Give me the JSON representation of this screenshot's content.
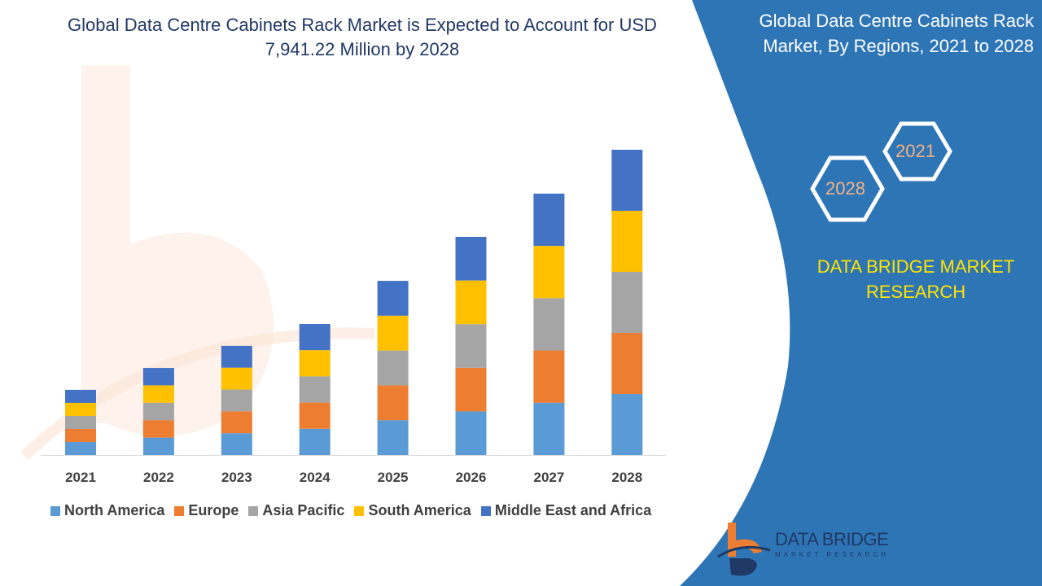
{
  "title": "Global Data Centre Cabinets Rack Market is Expected to Account for USD 7,941.22 Million by 2028",
  "side_panel": {
    "title": "Global Data Centre Cabinets Rack Market, By Regions, 2021 to 2028",
    "hex_years": [
      "2021",
      "2028"
    ],
    "brand": "DATA BRIDGE MARKET RESEARCH",
    "logo_text": "DATA BRIDGE",
    "logo_subtext": "MARKET RESEARCH",
    "color": "#2e75b6",
    "brand_color": "#ffe400"
  },
  "chart_data": {
    "type": "bar",
    "stacked": true,
    "title": "",
    "xlabel": "",
    "ylabel": "",
    "ylim": [
      0,
      7941.22
    ],
    "grid": false,
    "legend_position": "bottom",
    "categories": [
      "2021",
      "2022",
      "2023",
      "2024",
      "2025",
      "2026",
      "2027",
      "2028"
    ],
    "series": [
      {
        "name": "North America",
        "color": "#5b9bd5",
        "values": [
          339,
          453,
          568,
          682,
          906,
          1135,
          1360,
          1588
        ]
      },
      {
        "name": "Europe",
        "color": "#ed7d31",
        "values": [
          339,
          453,
          568,
          682,
          906,
          1135,
          1360,
          1588
        ]
      },
      {
        "name": "Asia Pacific",
        "color": "#a5a5a5",
        "values": [
          339,
          453,
          568,
          682,
          906,
          1135,
          1360,
          1588
        ]
      },
      {
        "name": "South America",
        "color": "#ffc000",
        "values": [
          339,
          453,
          568,
          682,
          906,
          1135,
          1360,
          1589
        ]
      },
      {
        "name": "Middle East and Africa",
        "color": "#4472c4",
        "values": [
          339,
          453,
          568,
          682,
          906,
          1135,
          1360,
          1588
        ]
      }
    ]
  }
}
